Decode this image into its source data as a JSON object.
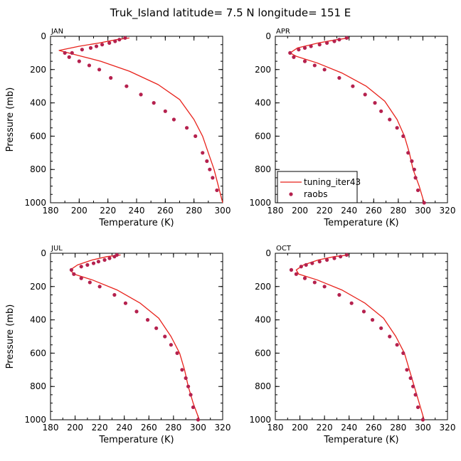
{
  "title": "Truk_Island   latitude= 7.5 N longitude= 151 E",
  "colors": {
    "model": "#e8221b",
    "obs": "#b5214e",
    "axes": "#000000",
    "background": "#ffffff"
  },
  "legend": {
    "model_label": "tuning_iter43",
    "obs_label": "raobs",
    "placement": "lower-left of APR panel"
  },
  "chart_data": [
    {
      "type": "line",
      "panel": "JAN",
      "xlabel": "Temperature (K)",
      "ylabel": "Pressure (mb)",
      "xlim": [
        180,
        300
      ],
      "ylim": [
        1000,
        0
      ],
      "xticks": [
        180,
        200,
        220,
        240,
        260,
        280,
        300
      ],
      "yticks": [
        0,
        200,
        400,
        600,
        800,
        1000
      ],
      "series": [
        {
          "name": "tuning_iter43",
          "style": "line",
          "x": [
            235,
            226,
            214,
            200,
            186,
            197,
            215,
            235,
            255,
            270,
            280,
            286,
            290,
            294,
            297,
            300
          ],
          "y": [
            10,
            20,
            40,
            60,
            85,
            110,
            150,
            210,
            290,
            380,
            500,
            600,
            700,
            800,
            900,
            1000
          ]
        },
        {
          "name": "raobs",
          "style": "markers",
          "x": [
            232,
            228,
            225,
            221,
            216,
            212,
            208,
            202,
            195,
            190,
            193,
            200,
            207,
            214,
            222,
            233,
            243,
            252,
            260,
            266,
            275,
            281,
            286,
            289,
            291,
            293,
            296
          ],
          "y": [
            10,
            20,
            30,
            40,
            50,
            60,
            70,
            80,
            100,
            100,
            125,
            150,
            175,
            200,
            250,
            300,
            350,
            400,
            450,
            500,
            550,
            600,
            700,
            750,
            800,
            850,
            925
          ]
        }
      ]
    },
    {
      "type": "line",
      "panel": "APR",
      "xlabel": "Temperature (K)",
      "ylabel": "",
      "xlim": [
        180,
        320
      ],
      "ylim": [
        1000,
        0
      ],
      "xticks": [
        180,
        200,
        220,
        240,
        260,
        280,
        300,
        320
      ],
      "yticks": [
        0,
        200,
        400,
        600,
        800,
        1000
      ],
      "series": [
        {
          "name": "tuning_iter43",
          "style": "line",
          "x": [
            240,
            230,
            215,
            198,
            192,
            197,
            214,
            234,
            254,
            269,
            279,
            285,
            289,
            292,
            297,
            301
          ],
          "y": [
            10,
            20,
            40,
            70,
            100,
            120,
            160,
            220,
            300,
            390,
            500,
            600,
            700,
            800,
            900,
            1000
          ]
        },
        {
          "name": "raobs",
          "style": "markers",
          "x": [
            238,
            232,
            228,
            222,
            216,
            209,
            204,
            199,
            192,
            195,
            204,
            212,
            220,
            232,
            243,
            253,
            261,
            266,
            273,
            279,
            284,
            288,
            291,
            293,
            294,
            296,
            301
          ],
          "y": [
            10,
            20,
            30,
            40,
            50,
            60,
            70,
            80,
            100,
            125,
            150,
            175,
            200,
            250,
            300,
            350,
            400,
            450,
            500,
            550,
            600,
            700,
            750,
            800,
            850,
            925,
            1000
          ]
        }
      ]
    },
    {
      "type": "line",
      "panel": "JUL",
      "xlabel": "Temperature (K)",
      "ylabel": "Pressure (mb)",
      "xlim": [
        180,
        320
      ],
      "ylim": [
        1000,
        0
      ],
      "xticks": [
        180,
        200,
        220,
        240,
        260,
        280,
        300,
        320
      ],
      "yticks": [
        0,
        200,
        400,
        600,
        800,
        1000
      ],
      "series": [
        {
          "name": "tuning_iter43",
          "style": "line",
          "x": [
            237,
            226,
            214,
            202,
            196,
            199,
            214,
            234,
            253,
            268,
            278,
            285,
            289,
            292,
            296,
            301
          ],
          "y": [
            10,
            20,
            40,
            70,
            100,
            125,
            160,
            220,
            300,
            390,
            500,
            600,
            700,
            800,
            900,
            1000
          ]
        },
        {
          "name": "raobs",
          "style": "markers",
          "x": [
            234,
            232,
            228,
            224,
            219,
            215,
            210,
            205,
            197,
            199,
            205,
            212,
            220,
            232,
            241,
            250,
            259,
            266,
            273,
            278,
            283,
            287,
            290,
            292,
            294,
            296,
            300
          ],
          "y": [
            10,
            20,
            30,
            40,
            50,
            60,
            70,
            80,
            100,
            125,
            150,
            175,
            200,
            250,
            300,
            350,
            400,
            450,
            500,
            550,
            600,
            700,
            750,
            800,
            850,
            925,
            1000
          ]
        }
      ]
    },
    {
      "type": "line",
      "panel": "OCT",
      "xlabel": "Temperature (K)",
      "ylabel": "",
      "xlim": [
        180,
        320
      ],
      "ylim": [
        1000,
        0
      ],
      "xticks": [
        180,
        200,
        220,
        240,
        260,
        280,
        300,
        320
      ],
      "yticks": [
        0,
        200,
        400,
        600,
        800,
        1000
      ],
      "series": [
        {
          "name": "tuning_iter43",
          "style": "line",
          "x": [
            240,
            228,
            215,
            203,
            197,
            199,
            214,
            234,
            253,
            268,
            278,
            285,
            289,
            293,
            297,
            301
          ],
          "y": [
            10,
            20,
            40,
            70,
            100,
            125,
            160,
            220,
            300,
            390,
            500,
            600,
            700,
            800,
            900,
            1000
          ]
        },
        {
          "name": "raobs",
          "style": "markers",
          "x": [
            238,
            233,
            228,
            222,
            216,
            210,
            205,
            201,
            193,
            197,
            204,
            212,
            220,
            232,
            242,
            252,
            259,
            266,
            273,
            279,
            284,
            287,
            290,
            292,
            294,
            296,
            300
          ],
          "y": [
            10,
            20,
            30,
            40,
            50,
            60,
            70,
            80,
            100,
            125,
            150,
            175,
            200,
            250,
            300,
            350,
            400,
            450,
            500,
            550,
            600,
            700,
            750,
            800,
            850,
            925,
            1000
          ]
        }
      ]
    }
  ]
}
